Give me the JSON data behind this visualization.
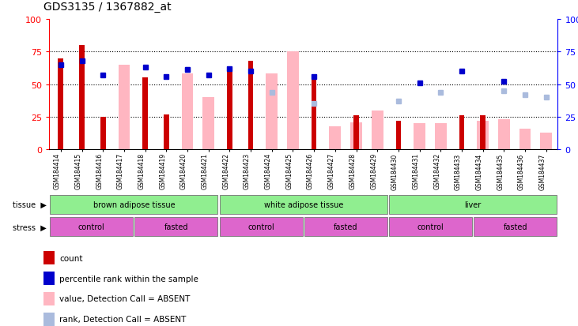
{
  "title": "GDS3135 / 1367882_at",
  "samples": [
    "GSM184414",
    "GSM184415",
    "GSM184416",
    "GSM184417",
    "GSM184418",
    "GSM184419",
    "GSM184420",
    "GSM184421",
    "GSM184422",
    "GSM184423",
    "GSM184424",
    "GSM184425",
    "GSM184426",
    "GSM184427",
    "GSM184428",
    "GSM184429",
    "GSM184430",
    "GSM184431",
    "GSM184432",
    "GSM184433",
    "GSM184434",
    "GSM184435",
    "GSM184436",
    "GSM184437"
  ],
  "count_values": [
    70,
    80,
    25,
    null,
    55,
    27,
    null,
    null,
    62,
    68,
    null,
    null,
    57,
    null,
    26,
    null,
    22,
    null,
    null,
    26,
    26,
    null,
    null,
    null
  ],
  "rank_values": [
    65,
    68,
    57,
    null,
    63,
    56,
    61,
    57,
    62,
    60,
    null,
    null,
    56,
    null,
    null,
    null,
    null,
    51,
    null,
    60,
    null,
    52,
    null,
    null
  ],
  "absent_value_values": [
    null,
    null,
    null,
    65,
    null,
    null,
    58,
    40,
    null,
    null,
    58,
    75,
    null,
    18,
    21,
    30,
    null,
    20,
    20,
    null,
    22,
    23,
    16,
    13
  ],
  "absent_rank_values": [
    null,
    null,
    null,
    null,
    null,
    null,
    61,
    null,
    null,
    null,
    44,
    null,
    35,
    null,
    null,
    null,
    37,
    null,
    44,
    null,
    null,
    45,
    42,
    40
  ],
  "tissue_groups": [
    {
      "label": "brown adipose tissue",
      "start": 0,
      "end": 8
    },
    {
      "label": "white adipose tissue",
      "start": 8,
      "end": 16
    },
    {
      "label": "liver",
      "start": 16,
      "end": 24
    }
  ],
  "stress_groups": [
    {
      "label": "control",
      "start": 0,
      "end": 4
    },
    {
      "label": "fasted",
      "start": 4,
      "end": 8
    },
    {
      "label": "control",
      "start": 8,
      "end": 12
    },
    {
      "label": "fasted",
      "start": 12,
      "end": 16
    },
    {
      "label": "control",
      "start": 16,
      "end": 20
    },
    {
      "label": "fasted",
      "start": 20,
      "end": 24
    }
  ],
  "ylim": [
    0,
    100
  ],
  "yticks": [
    0,
    25,
    50,
    75,
    100
  ],
  "count_color": "#CC0000",
  "rank_color": "#0000CC",
  "absent_value_color": "#FFB6C1",
  "absent_rank_color": "#AABBDD",
  "tissue_color": "#90EE90",
  "stress_color": "#DD66CC",
  "xticklabel_bg": "#CCCCCC",
  "legend_items": [
    {
      "color": "#CC0000",
      "label": "count"
    },
    {
      "color": "#0000CC",
      "label": "percentile rank within the sample"
    },
    {
      "color": "#FFB6C1",
      "label": "value, Detection Call = ABSENT"
    },
    {
      "color": "#AABBDD",
      "label": "rank, Detection Call = ABSENT"
    }
  ]
}
